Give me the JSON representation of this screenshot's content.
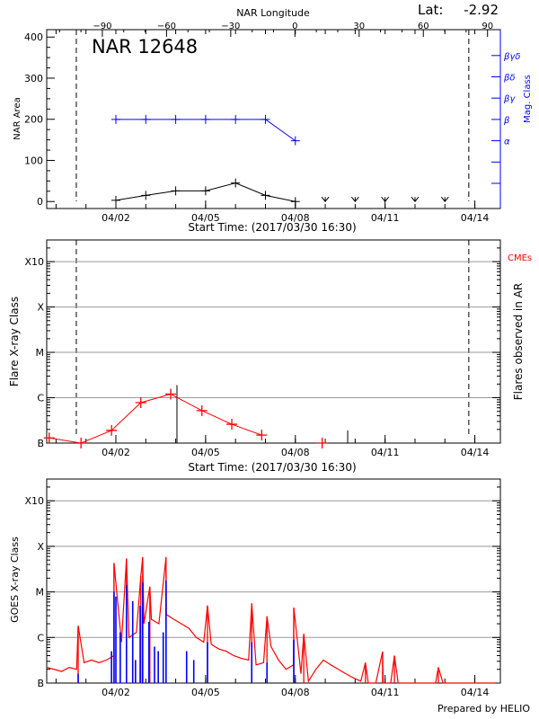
{
  "header": {
    "lat_label": "Lat:",
    "lat_value": "-2.92",
    "region_title": "NAR 12648"
  },
  "colors": {
    "area": "#000000",
    "mag_class": "#0000ff",
    "flares": "#ff0000",
    "cme": "#ff0000",
    "goes_long": "#ff0000",
    "goes_short": "#0000ff",
    "grid": "#999999"
  },
  "chart_data": [
    {
      "type": "line",
      "panel": "nar",
      "xlabel": "Start Time: (2017/03/30 16:30)",
      "ylabel": "NAR Area",
      "y2label": "Mag. Class",
      "x2label": "NAR Longitude",
      "xlim": [
        "2017-03-30T16:30",
        "2017-04-14T20:30"
      ],
      "ylim": [
        -17,
        418
      ],
      "yticks": [
        0,
        100,
        200,
        300,
        400
      ],
      "x_tick_labels": [
        "04/02",
        "04/05",
        "04/08",
        "04/11",
        "04/14"
      ],
      "x_tick_dates": [
        "2017-04-02T00:00",
        "2017-04-05T00:00",
        "2017-04-08T00:00",
        "2017-04-11T00:00",
        "2017-04-14T00:00"
      ],
      "longitude_ticks": [
        -90,
        -60,
        -30,
        0,
        30,
        60,
        90
      ],
      "longitude_range": [
        -116,
        96
      ],
      "limb_dates": [
        "2017-03-31T16:15",
        "2017-04-13T19:10"
      ],
      "mag_class_levels": [
        "",
        "",
        "α",
        "β",
        "βγ",
        "βδ",
        "βγδ"
      ],
      "series": [
        {
          "name": "NAR Area",
          "color": "#000000",
          "x": [
            "2017-04-02T00:00",
            "2017-04-03T00:00",
            "2017-04-04T00:00",
            "2017-04-05T00:00",
            "2017-04-06T00:00",
            "2017-04-07T00:00",
            "2017-04-08T00:00"
          ],
          "values": [
            3,
            15,
            26,
            26,
            45,
            15,
            0
          ]
        },
        {
          "name": "Mag. Class",
          "color": "#0000ff",
          "axis": "right",
          "x": [
            "2017-04-02T00:00",
            "2017-04-03T00:00",
            "2017-04-04T00:00",
            "2017-04-05T00:00",
            "2017-04-06T00:00",
            "2017-04-07T00:00",
            "2017-04-08T00:00"
          ],
          "values": [
            "β",
            "β",
            "β",
            "β",
            "β",
            "β",
            "α"
          ]
        }
      ],
      "no_data_dates": [
        "2017-04-09T00:00",
        "2017-04-10T00:00",
        "2017-04-11T00:00",
        "2017-04-12T00:00",
        "2017-04-13T00:00"
      ]
    },
    {
      "type": "line",
      "panel": "flares",
      "xlabel": "Start Time: (2017/03/30 16:30)",
      "ylabel": "Flare X-ray Class",
      "y2label": "Flares observed in AR",
      "cme_label": "CMEs",
      "yscale": "log",
      "ylim": [
        1e-07,
        0.003
      ],
      "ytick_labels": [
        "B",
        "C",
        "M",
        "X",
        "X10"
      ],
      "ytick_values": [
        1e-07,
        1e-06,
        1e-05,
        0.0001,
        0.001
      ],
      "grid": true,
      "series": [
        {
          "color": "#ff0000",
          "x": [
            "2017-03-30T18:30",
            "2017-03-31T20:00",
            "2017-04-01T20:30",
            "2017-04-02T20:00",
            "2017-04-03T20:00",
            "2017-04-04T21:00",
            "2017-04-05T21:00",
            "2017-04-06T21:00"
          ],
          "values": [
            1.3e-07,
            1e-07,
            1.9e-07,
            7.8e-07,
            1.2e-06,
            5.2e-07,
            2.6e-07,
            1.5e-07
          ]
        },
        {
          "color": "#ff0000",
          "x": [
            "2017-04-08T21:30"
          ],
          "values": [
            1e-07
          ]
        }
      ],
      "flare_bars": {
        "color": "#000000",
        "x": [
          "2017-04-04T01:00",
          "2017-04-09T18:00"
        ],
        "values": [
          1.9e-06,
          1.9e-07
        ]
      }
    },
    {
      "type": "line",
      "panel": "goes",
      "ylabel": "GOES X-ray Class",
      "footer": "Prepared by HELIO",
      "yscale": "log",
      "ylim": [
        1e-07,
        0.003
      ],
      "ytick_labels": [
        "B",
        "C",
        "M",
        "X",
        "X10"
      ],
      "ytick_values": [
        1e-07,
        1e-06,
        1e-05,
        0.0001,
        0.001
      ],
      "grid": true,
      "long_channel": {
        "color": "#ff0000",
        "start": "2017-03-30T16:30",
        "step_hours": 6,
        "values": [
          2.2e-07,
          2e-07,
          1.8e-07,
          2.2e-07,
          2e-07,
          2.8e-07,
          3.2e-07,
          2.8e-07,
          3.2e-07,
          4e-07,
          7.9e-07,
          1e-06,
          1.3e-06,
          2e-06,
          2.5e-06,
          2e-06,
          3.2e-06,
          2.5e-06,
          2e-06,
          1.6e-06,
          1e-06,
          7.9e-07,
          7.1e-07,
          5.6e-07,
          5e-07,
          4e-07,
          3.5e-07,
          3.2e-07,
          2.5e-07,
          2.8e-07,
          6.3e-07,
          3.2e-07,
          2e-07,
          2.5e-07,
          1.6e-07,
          1.1e-07,
          2e-07,
          3.2e-07,
          2.5e-07,
          2e-07,
          1.6e-07,
          1.3e-07,
          1.1e-07,
          1e-07,
          1e-07,
          1e-07,
          1e-07,
          1e-07,
          1e-07,
          1e-07,
          1e-07,
          1e-07,
          1e-07,
          1e-07,
          1e-07,
          1e-07,
          1e-07,
          1e-07,
          1e-07,
          1e-07,
          1e-07
        ],
        "peaks_x": [
          "2017-03-31T17:45",
          "2017-04-01T22:30",
          "2017-04-02T08:30",
          "2017-04-02T20:00",
          "2017-04-02T21:30",
          "2017-04-03T03:15",
          "2017-04-03T16:15",
          "2017-04-05T01:30",
          "2017-04-06T13:00",
          "2017-04-07T01:15",
          "2017-04-07T22:45",
          "2017-04-08T06:45",
          "2017-04-10T08:15",
          "2017-04-10T22:00",
          "2017-04-11T07:30",
          "2017-04-12T18:45"
        ],
        "peaks": [
          1.8e-06,
          4.3e-05,
          5.4e-05,
          2.2e-05,
          5.8e-05,
          1.3e-05,
          5.8e-05,
          5e-06,
          5.6e-06,
          2.9e-06,
          4.5e-06,
          1.2e-06,
          2.8e-07,
          4.9e-07,
          4e-07,
          2.2e-07
        ]
      },
      "short_channel": {
        "color": "#0000ff",
        "x": [
          "2017-03-31T17:45",
          "2017-04-01T20:30",
          "2017-04-01T22:30",
          "2017-04-02T00:00",
          "2017-04-02T03:30",
          "2017-04-02T08:30",
          "2017-04-02T13:30",
          "2017-04-02T15:45",
          "2017-04-02T19:30",
          "2017-04-02T21:30",
          "2017-04-03T02:30",
          "2017-04-03T07:00",
          "2017-04-03T10:00",
          "2017-04-03T14:00",
          "2017-04-03T16:15",
          "2017-04-04T08:45",
          "2017-04-04T14:30",
          "2017-04-05T01:30",
          "2017-04-06T13:00",
          "2017-04-07T01:15",
          "2017-04-07T22:45"
        ],
        "values": [
          1.6e-07,
          5e-07,
          1e-05,
          7.9e-06,
          1.3e-06,
          1.4e-05,
          6.3e-06,
          3.2e-07,
          5e-06,
          1.6e-05,
          2.2e-06,
          6.3e-07,
          5e-07,
          1.3e-06,
          1.8e-05,
          5e-07,
          3.2e-07,
          7.9e-07,
          7.9e-07,
          2.8e-07,
          8.9e-07
        ]
      }
    }
  ]
}
